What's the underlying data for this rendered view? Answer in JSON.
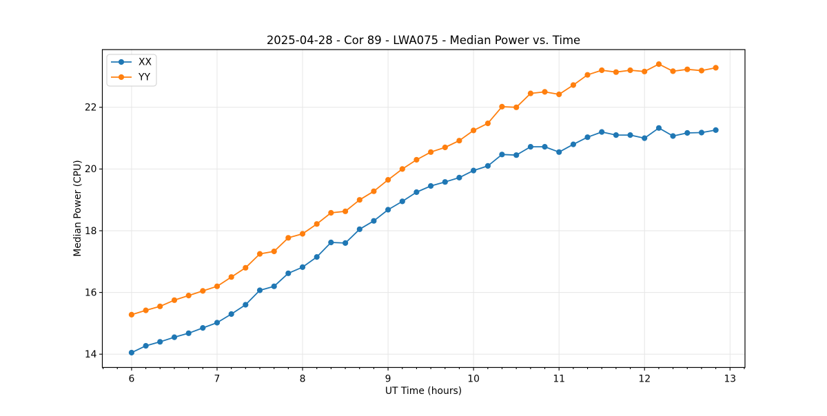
{
  "chart_data": {
    "type": "line",
    "title": "2025-04-28 - Cor 89 - LWA075 - Median Power vs. Time",
    "xlabel": "UT Time (hours)",
    "ylabel": "Median Power (CPU)",
    "xlim": [
      5.658,
      13.175
    ],
    "ylim": [
      13.57,
      23.87
    ],
    "xticks": [
      6,
      7,
      8,
      9,
      10,
      11,
      12,
      13
    ],
    "yticks": [
      14,
      16,
      18,
      20,
      22
    ],
    "x_minor_tick_step_hours": 0.1667,
    "grid": true,
    "legend_position": "upper-left",
    "grid_color": "#e6e6e6",
    "x": [
      6.0,
      6.167,
      6.333,
      6.5,
      6.667,
      6.833,
      7.0,
      7.167,
      7.333,
      7.5,
      7.667,
      7.833,
      8.0,
      8.167,
      8.333,
      8.5,
      8.667,
      8.833,
      9.0,
      9.167,
      9.333,
      9.5,
      9.667,
      9.833,
      10.0,
      10.167,
      10.333,
      10.5,
      10.667,
      10.833,
      11.0,
      11.167,
      11.333,
      11.5,
      11.667,
      11.833,
      12.0,
      12.167,
      12.333,
      12.5,
      12.667,
      12.833
    ],
    "series": [
      {
        "name": "XX",
        "color": "#1f77b4",
        "values": [
          14.05,
          14.27,
          14.4,
          14.55,
          14.68,
          14.85,
          15.02,
          15.3,
          15.6,
          16.07,
          16.2,
          16.62,
          16.82,
          17.15,
          17.62,
          17.6,
          18.05,
          18.32,
          18.68,
          18.95,
          19.25,
          19.45,
          19.58,
          19.72,
          19.95,
          20.1,
          20.47,
          20.45,
          20.72,
          20.72,
          20.55,
          20.8,
          21.03,
          21.2,
          21.1,
          21.1,
          21.0,
          21.33,
          21.07,
          21.17,
          21.18,
          21.26
        ]
      },
      {
        "name": "YY",
        "color": "#ff7f0e",
        "values": [
          15.28,
          15.42,
          15.55,
          15.75,
          15.9,
          16.05,
          16.2,
          16.5,
          16.8,
          17.25,
          17.33,
          17.77,
          17.9,
          18.22,
          18.58,
          18.63,
          19.0,
          19.28,
          19.65,
          20.0,
          20.3,
          20.55,
          20.7,
          20.92,
          21.25,
          21.48,
          22.02,
          22.0,
          22.45,
          22.5,
          22.42,
          22.72,
          23.05,
          23.2,
          23.14,
          23.2,
          23.16,
          23.4,
          23.17,
          23.23,
          23.19,
          23.28
        ]
      }
    ]
  }
}
